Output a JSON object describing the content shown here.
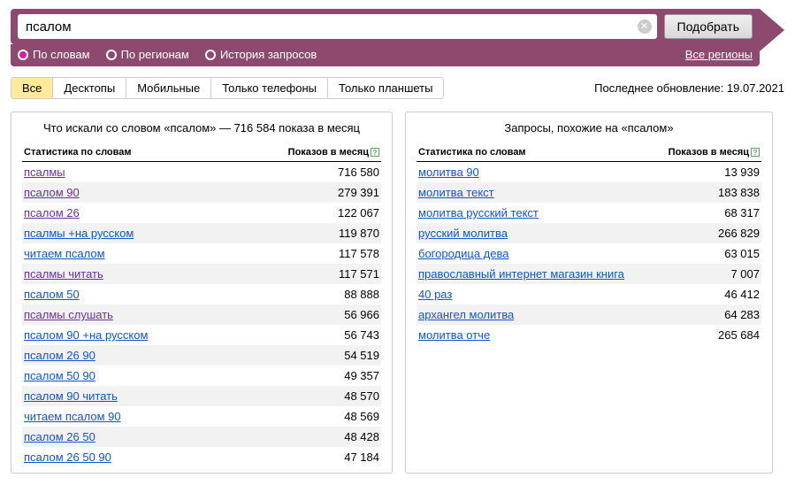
{
  "search": {
    "value": "псалом",
    "placeholder": "",
    "submit_label": "Подобрать",
    "clear_glyph": "✕"
  },
  "filters": {
    "by_words": "По словам",
    "by_regions": "По регионам",
    "history": "История запросов",
    "all_regions": "Все регионы"
  },
  "tabs": {
    "items": [
      "Все",
      "Десктопы",
      "Мобильные",
      "Только телефоны",
      "Только планшеты"
    ],
    "active_index": 0
  },
  "last_update": "Последнее обновление: 19.07.2021",
  "left_panel": {
    "title": "Что искали со словом «псалом» — 716 584 показа в месяц",
    "col_word": "Статистика по словам",
    "col_count": "Показов в месяц",
    "rows": [
      {
        "word": "псалмы",
        "count": "716 580",
        "visited": true
      },
      {
        "word": "псалом 90",
        "count": "279 391",
        "visited": true
      },
      {
        "word": "псалом 26",
        "count": "122 067",
        "visited": true
      },
      {
        "word": "псалмы +на русском",
        "count": "119 870",
        "visited": false
      },
      {
        "word": "читаем псалом",
        "count": "117 578",
        "visited": false
      },
      {
        "word": "псалмы читать",
        "count": "117 571",
        "visited": true
      },
      {
        "word": "псалом 50",
        "count": "88 888",
        "visited": false
      },
      {
        "word": "псалмы слушать",
        "count": "56 966",
        "visited": true
      },
      {
        "word": "псалом 90 +на русском",
        "count": "56 743",
        "visited": false
      },
      {
        "word": "псалом 26 90",
        "count": "54 519",
        "visited": false
      },
      {
        "word": "псалом 50 90",
        "count": "49 357",
        "visited": false
      },
      {
        "word": "псалом 90 читать",
        "count": "48 570",
        "visited": false
      },
      {
        "word": "читаем псалом 90",
        "count": "48 569",
        "visited": false
      },
      {
        "word": "псалом 26 50",
        "count": "48 428",
        "visited": false
      },
      {
        "word": "псалом 26 50 90",
        "count": "47 184",
        "visited": false
      }
    ]
  },
  "right_panel": {
    "title": "Запросы, похожие на «псалом»",
    "col_word": "Статистика по словам",
    "col_count": "Показов в месяц",
    "rows": [
      {
        "word": "молитва 90",
        "count": "13 939"
      },
      {
        "word": "молитва текст",
        "count": "183 838"
      },
      {
        "word": "молитва русский текст",
        "count": "68 317"
      },
      {
        "word": "русский молитва",
        "count": "266 829"
      },
      {
        "word": "богородица дева",
        "count": "63 015"
      },
      {
        "word": "православный интернет магазин книга",
        "count": "7 007"
      },
      {
        "word": "40 раз",
        "count": "46 412"
      },
      {
        "word": "архангел молитва",
        "count": "64 283"
      },
      {
        "word": "молитва отче",
        "count": "265 684"
      }
    ]
  },
  "colors": {
    "brand": "#8e4a6e",
    "tab_active_bg": "#ffeb99",
    "link": "#1155cc",
    "link_visited": "#6b2fa0",
    "zebra": "#f2f2f2",
    "border": "#cccccc"
  }
}
